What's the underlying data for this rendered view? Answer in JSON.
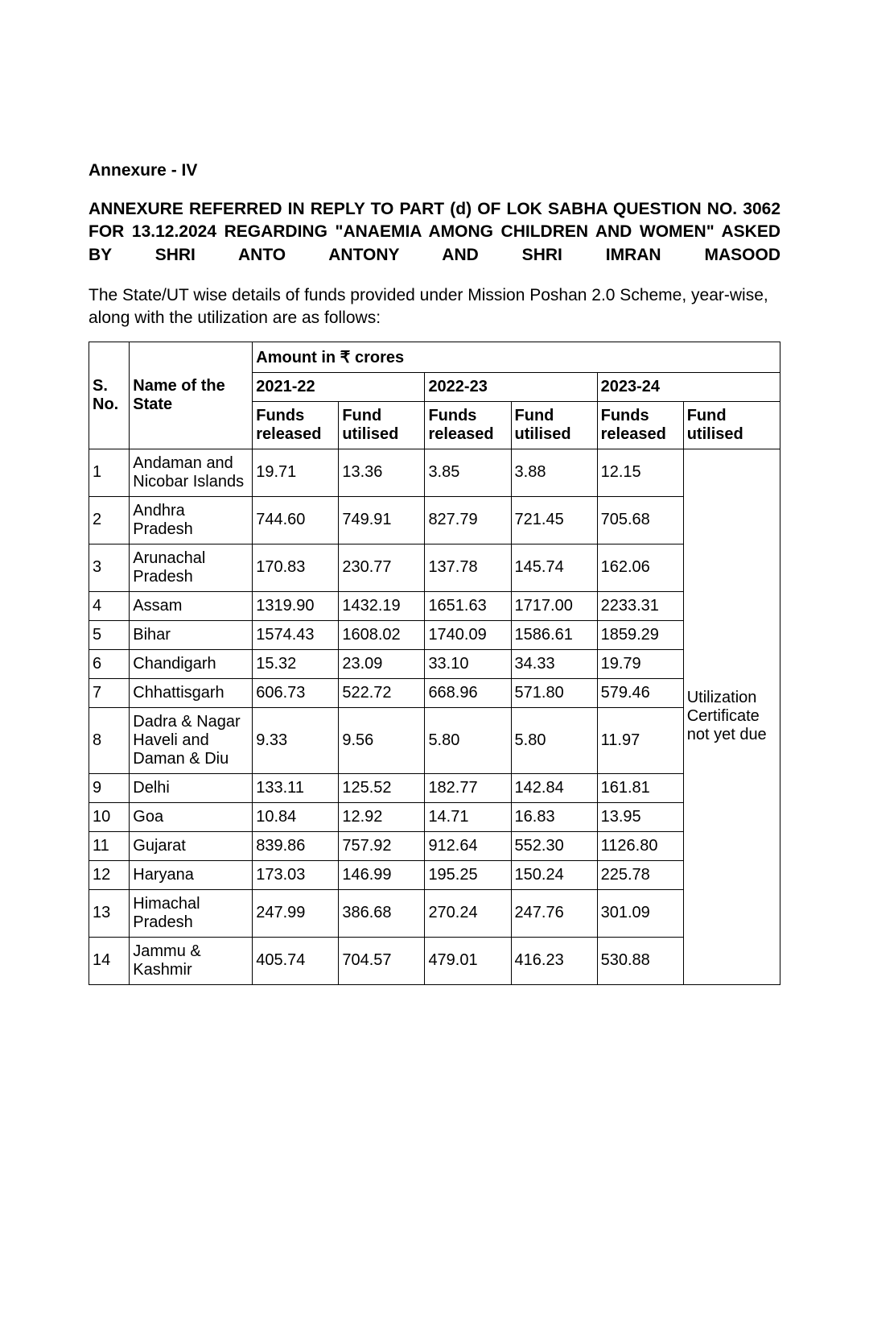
{
  "heading_a": "Annexure - IV",
  "heading_b": "ANNEXURE REFERRED IN REPLY TO PART (d) OF LOK SABHA QUESTION NO. 3062 FOR 13.12.2024 REGARDING \"ANAEMIA AMONG CHILDREN AND WOMEN\" ASKED BY SHRI ANTO ANTONY AND SHRI IMRAN MASOOD",
  "intro": " The State/UT wise details of funds provided under Mission Poshan 2.0 Scheme, year-wise, along with the utilization are as follows:",
  "table": {
    "headers": {
      "sno": "S. No.",
      "state": "Name of the State",
      "amount": "Amount in ₹ crores",
      "y1": "2021-22",
      "y2": "2022-23",
      "y3": "2023-24",
      "released": "Funds released",
      "utilised": "Fund utilised",
      "util_note": "Utilization Certificate not yet due"
    },
    "rows": [
      {
        "n": "1",
        "state": "Andaman and Nicobar Islands",
        "r1": "19.71",
        "u1": "13.36",
        "r2": "3.85",
        "u2": "3.88",
        "r3": "12.15"
      },
      {
        "n": "2",
        "state": "Andhra Pradesh",
        "r1": "744.60",
        "u1": "749.91",
        "r2": "827.79",
        "u2": "721.45",
        "r3": "705.68"
      },
      {
        "n": "3",
        "state": "Arunachal Pradesh",
        "r1": "170.83",
        "u1": "230.77",
        "r2": "137.78",
        "u2": "145.74",
        "r3": "162.06"
      },
      {
        "n": "4",
        "state": "Assam",
        "r1": "1319.90",
        "u1": "1432.19",
        "r2": "1651.63",
        "u2": "1717.00",
        "r3": "2233.31"
      },
      {
        "n": "5",
        "state": "Bihar",
        "r1": "1574.43",
        "u1": "1608.02",
        "r2": "1740.09",
        "u2": "1586.61",
        "r3": "1859.29"
      },
      {
        "n": "6",
        "state": "Chandigarh",
        "r1": "15.32",
        "u1": "23.09",
        "r2": "33.10",
        "u2": "34.33",
        "r3": "19.79"
      },
      {
        "n": "7",
        "state": "Chhattisgarh",
        "r1": "606.73",
        "u1": "522.72",
        "r2": "668.96",
        "u2": "571.80",
        "r3": "579.46"
      },
      {
        "n": "8",
        "state": "Dadra & Nagar Haveli and Daman & Diu",
        "r1": "9.33",
        "u1": "9.56",
        "r2": "5.80",
        "u2": "5.80",
        "r3": "11.97"
      },
      {
        "n": "9",
        "state": "Delhi",
        "r1": "133.11",
        "u1": "125.52",
        "r2": "182.77",
        "u2": "142.84",
        "r3": "161.81"
      },
      {
        "n": "10",
        "state": "Goa",
        "r1": "10.84",
        "u1": "12.92",
        "r2": "14.71",
        "u2": "16.83",
        "r3": "13.95"
      },
      {
        "n": "11",
        "state": "Gujarat",
        "r1": "839.86",
        "u1": "757.92",
        "r2": "912.64",
        "u2": "552.30",
        "r3": "1126.80"
      },
      {
        "n": "12",
        "state": "Haryana",
        "r1": "173.03",
        "u1": "146.99",
        "r2": "195.25",
        "u2": "150.24",
        "r3": "225.78"
      },
      {
        "n": "13",
        "state": "Himachal Pradesh",
        "r1": "247.99",
        "u1": "386.68",
        "r2": "270.24",
        "u2": "247.76",
        "r3": "301.09"
      },
      {
        "n": "14",
        "state": "Jammu & Kashmir",
        "r1": "405.74",
        "u1": "704.57",
        "r2": "479.01",
        "u2": "416.23",
        "r3": "530.88"
      }
    ]
  }
}
